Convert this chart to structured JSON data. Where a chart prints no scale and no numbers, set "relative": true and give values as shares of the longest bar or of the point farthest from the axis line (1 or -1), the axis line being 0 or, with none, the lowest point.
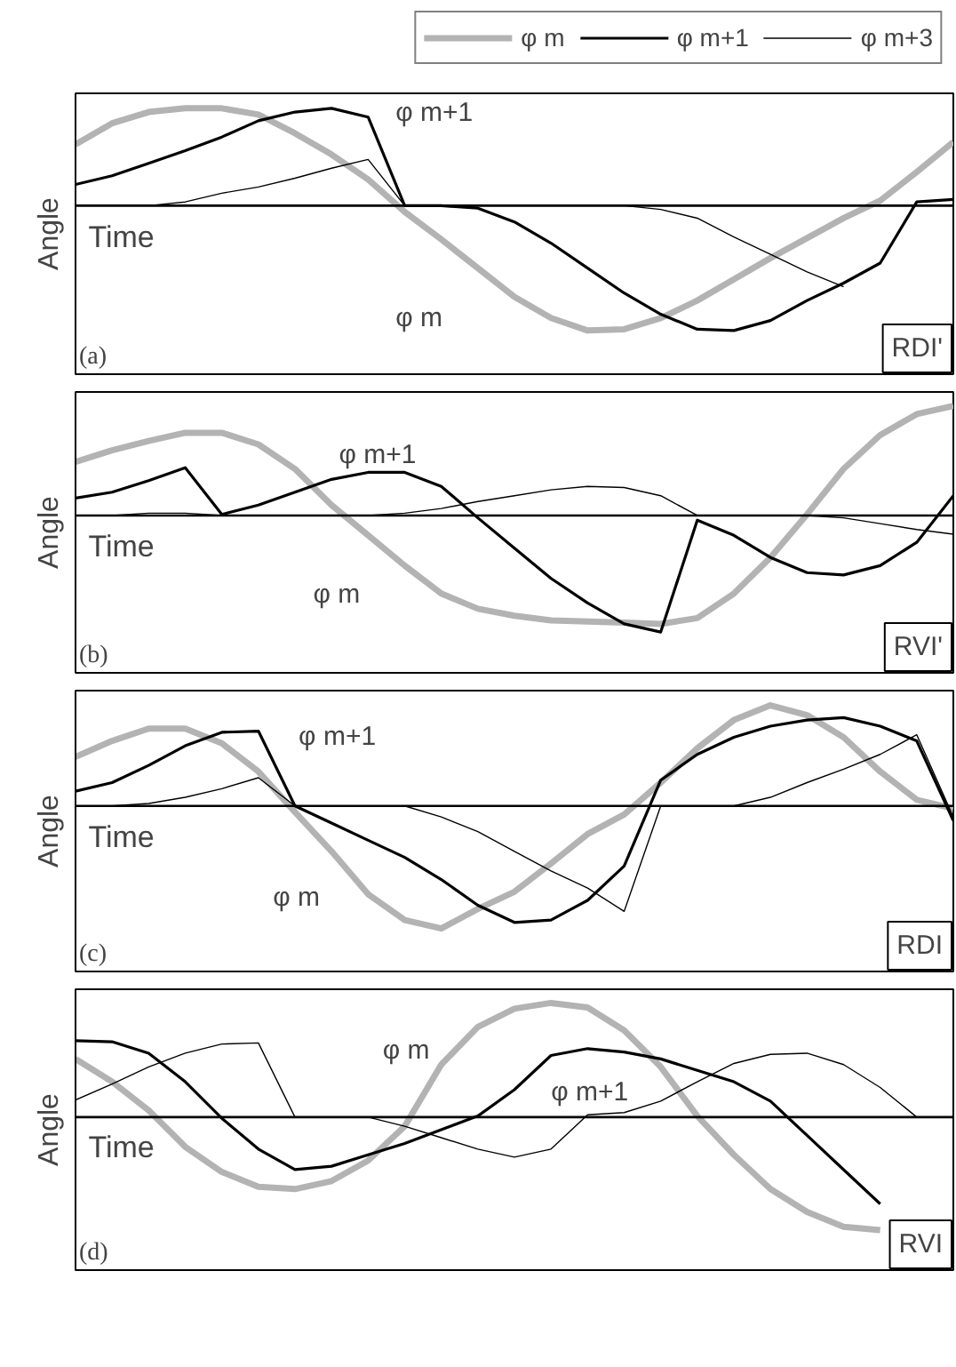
{
  "chart_data": [
    {
      "type": "line",
      "relative": true,
      "ylabel": "Angle",
      "xlabel": "Time",
      "legend": "top right",
      "categories": [
        null,
        null,
        null,
        null,
        null,
        null,
        null,
        null,
        null,
        null,
        null,
        null,
        null,
        null,
        null,
        null,
        null,
        null,
        null,
        null,
        null,
        null,
        null,
        null,
        null
      ],
      "annotations": [
        "φ m+1",
        "φ m",
        "(a)",
        "RDI'"
      ],
      "series": [
        {
          "name": "φ m",
          "color": "#b3b3b3",
          "values": [
            0.49,
            0.66,
            0.75,
            0.78,
            0.78,
            0.73,
            0.58,
            0.41,
            0.21,
            -0.05,
            -0.27,
            -0.5,
            -0.73,
            -0.9,
            -1,
            -0.99,
            -0.9,
            -0.76,
            -0.59,
            -0.42,
            -0.26,
            -0.1,
            0.04,
            0.27,
            0.51
          ]
        },
        {
          "name": "φ m+1",
          "color": "#000000",
          "values": [
            0.17,
            0.24,
            0.34,
            0.44,
            0.55,
            0.68,
            0.75,
            0.78,
            0.71,
            0,
            0,
            -0.02,
            -0.13,
            -0.3,
            -0.5,
            -0.7,
            -0.87,
            -0.99,
            -1,
            -0.92,
            -0.76,
            -0.62,
            -0.46,
            0.03,
            0.05
          ]
        },
        {
          "name": "φ m+3",
          "color": "#000000",
          "values": [
            0,
            0,
            0,
            0.03,
            0.1,
            0.15,
            0.22,
            0.3,
            0.37,
            0,
            0,
            0,
            0,
            0,
            0,
            0,
            -0.03,
            -0.1,
            -0.25,
            -0.39,
            -0.53,
            -0.65,
            null,
            0,
            0
          ]
        }
      ]
    },
    {
      "type": "line",
      "relative": true,
      "ylabel": "Angle",
      "xlabel": "Time",
      "categories": [
        null,
        null,
        null,
        null,
        null,
        null,
        null,
        null,
        null,
        null,
        null,
        null,
        null,
        null,
        null,
        null,
        null,
        null,
        null,
        null,
        null,
        null,
        null,
        null,
        null
      ],
      "annotations": [
        "φ m+1",
        "φ m",
        "(b)",
        "RVI'"
      ],
      "series": [
        {
          "color": "#b3b3b3",
          "values": [
            0.46,
            0.56,
            0.64,
            0.71,
            0.71,
            0.61,
            0.4,
            0.09,
            -0.17,
            -0.43,
            -0.67,
            -0.8,
            -0.86,
            -0.9,
            -0.91,
            -0.92,
            -0.93,
            -0.88,
            -0.67,
            -0.36,
            0.01,
            0.4,
            0.69,
            0.87,
            0.94
          ]
        },
        {
          "color": "#000000",
          "values": [
            0.15,
            0.2,
            0.3,
            0.41,
            0.01,
            0.09,
            0.2,
            0.31,
            0.37,
            0.37,
            0.25,
            -0.02,
            -0.28,
            -0.54,
            -0.75,
            -0.93,
            -1,
            -0.04,
            -0.17,
            -0.36,
            -0.49,
            -0.51,
            -0.43,
            -0.23,
            0.17
          ]
        },
        {
          "color": "#000000",
          "values": [
            0,
            0,
            0.02,
            0.02,
            0,
            0,
            0,
            0,
            0,
            0.02,
            0.06,
            0.12,
            0.17,
            0.22,
            0.25,
            0.24,
            0.17,
            0,
            0,
            0,
            0,
            -0.02,
            -0.07,
            -0.12,
            -0.16
          ]
        }
      ]
    },
    {
      "type": "line",
      "relative": true,
      "ylabel": "Angle",
      "xlabel": "Time",
      "categories": [
        null,
        null,
        null,
        null,
        null,
        null,
        null,
        null,
        null,
        null,
        null,
        null,
        null,
        null,
        null,
        null,
        null,
        null,
        null,
        null,
        null,
        null,
        null,
        null,
        null
      ],
      "annotations": [
        "φ m+1",
        "φ m",
        "(c)",
        "RDI"
      ],
      "series": [
        {
          "color": "#b3b3b3",
          "values": [
            0.4,
            0.53,
            0.63,
            0.63,
            0.51,
            0.28,
            -0.05,
            -0.37,
            -0.72,
            -0.93,
            -1,
            -0.84,
            -0.7,
            -0.47,
            -0.23,
            -0.07,
            0.19,
            0.47,
            0.7,
            0.82,
            0.74,
            0.56,
            0.28,
            0.05,
            -0.02
          ]
        },
        {
          "color": "#000000",
          "values": [
            0.12,
            0.19,
            0.33,
            0.49,
            0.6,
            0.61,
            0,
            -0.14,
            -0.28,
            -0.42,
            -0.6,
            -0.81,
            -0.95,
            -0.93,
            -0.77,
            -0.49,
            0.21,
            0.42,
            0.56,
            0.65,
            0.7,
            0.72,
            0.65,
            0.53,
            -0.12
          ]
        },
        {
          "color": "#000000",
          "values": [
            0,
            0,
            0.02,
            0.07,
            0.14,
            0.23,
            0,
            0,
            0,
            0,
            -0.09,
            -0.21,
            -0.37,
            -0.53,
            -0.67,
            -0.86,
            0,
            0,
            0,
            0.07,
            0.19,
            0.3,
            0.42,
            0.58,
            -0.09
          ]
        }
      ]
    },
    {
      "type": "line",
      "relative": true,
      "ylabel": "Angle",
      "xlabel": "Time",
      "categories": [
        null,
        null,
        null,
        null,
        null,
        null,
        null,
        null,
        null,
        null,
        null,
        null,
        null,
        null,
        null,
        null,
        null,
        null,
        null,
        null,
        null,
        null,
        null,
        null,
        null
      ],
      "annotations": [
        "φ m+1",
        "φ m",
        "(d)",
        "RVI"
      ],
      "series": [
        {
          "color": "#b3b3b3",
          "values": [
            0.51,
            0.31,
            0.06,
            -0.26,
            -0.48,
            -0.61,
            -0.63,
            -0.56,
            -0.38,
            -0.08,
            0.46,
            0.79,
            0.95,
            1,
            0.96,
            0.76,
            0.44,
            0.01,
            -0.33,
            -0.63,
            -0.83,
            -0.96,
            -0.99,
            null,
            null
          ]
        },
        {
          "color": "#000000",
          "values": [
            0.67,
            0.66,
            0.56,
            0.31,
            -0.01,
            -0.28,
            -0.46,
            -0.43,
            -0.33,
            -0.23,
            -0.11,
            0.01,
            0.24,
            0.54,
            0.6,
            0.57,
            0.51,
            0.41,
            0.31,
            0.14,
            -0.16,
            -0.46,
            -0.76,
            null,
            null
          ]
        },
        {
          "color": "#000000",
          "values": [
            0.15,
            0.29,
            0.44,
            0.56,
            0.64,
            0.65,
            0,
            0,
            0,
            -0.08,
            -0.18,
            -0.28,
            -0.35,
            -0.28,
            0.02,
            0.04,
            0.14,
            0.31,
            0.47,
            0.55,
            0.56,
            0.46,
            0.26,
            0,
            0
          ]
        }
      ]
    }
  ]
}
